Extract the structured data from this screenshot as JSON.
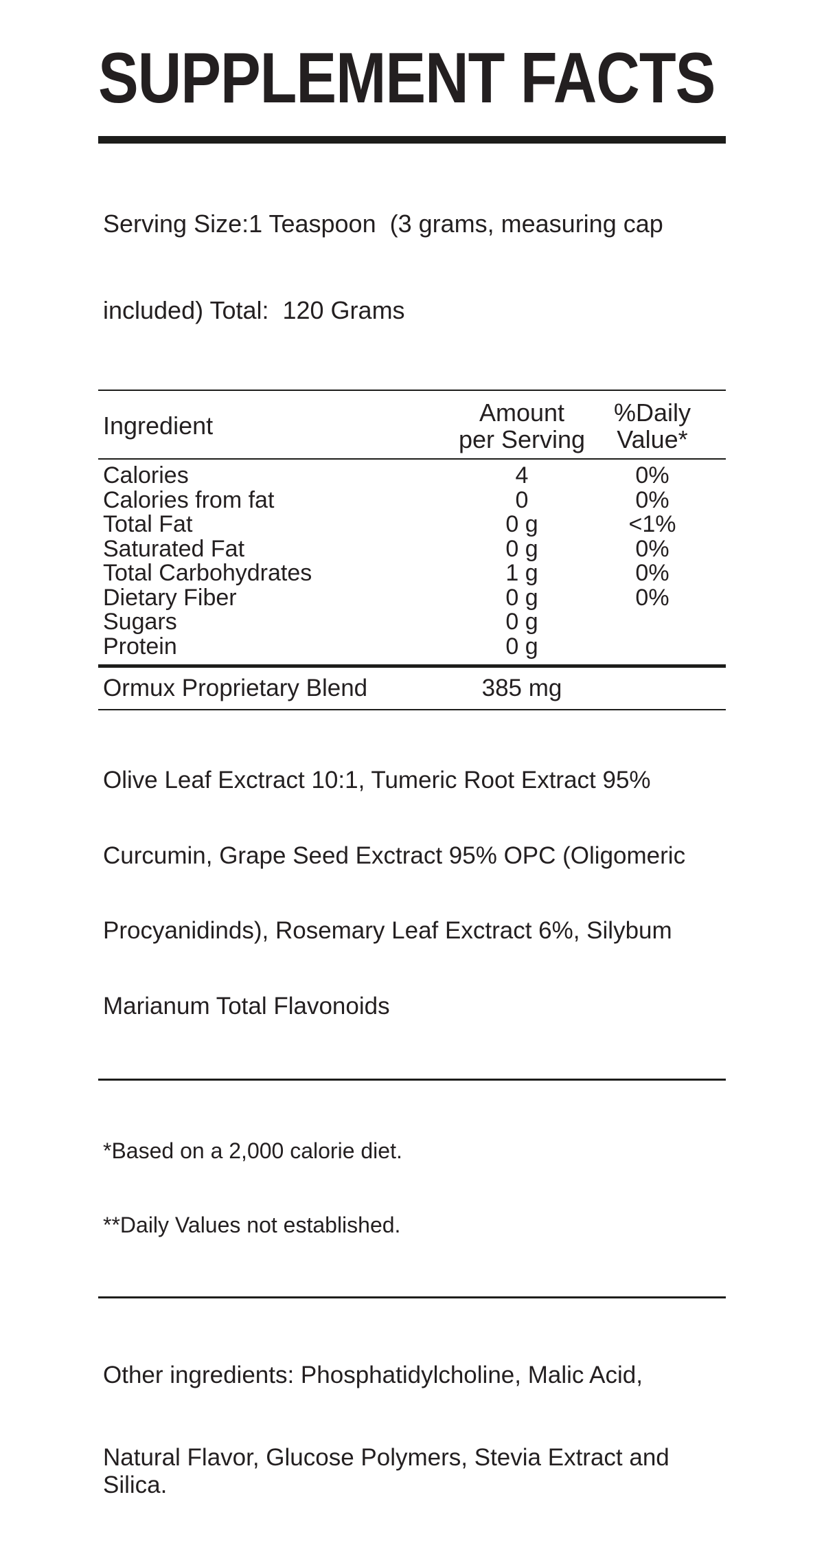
{
  "title": "SUPPLEMENT FACTS",
  "serving": {
    "lines": [
      "Serving Size:1 Teaspoon  (3 grams, measuring cap",
      "included) Total:  120 Grams"
    ]
  },
  "table": {
    "header": {
      "ingredient": "Ingredient",
      "amount_line1": "Amount",
      "amount_line2": "per Serving",
      "dv_line1": "%Daily",
      "dv_line2": "Value*"
    },
    "rows": [
      {
        "name": "Calories",
        "amount": "4",
        "dv": "0%"
      },
      {
        "name": "Calories from fat",
        "amount": "0",
        "dv": "0%"
      },
      {
        "name": "Total Fat",
        "amount": "0 g",
        "dv": "<1%"
      },
      {
        "name": "Saturated Fat",
        "amount": "0 g",
        "dv": "0%"
      },
      {
        "name": "Total Carbohydrates",
        "amount": "1 g",
        "dv": "0%"
      },
      {
        "name": "Dietary Fiber",
        "amount": "0 g",
        "dv": "0%"
      },
      {
        "name": "Sugars",
        "amount": "0 g",
        "dv": ""
      },
      {
        "name": "Protein",
        "amount": "0 g",
        "dv": ""
      }
    ]
  },
  "blend": {
    "name": "Ormux Proprietary Blend",
    "amount": "385 mg",
    "description_lines": [
      "Olive Leaf Exctract 10:1, Tumeric Root Extract 95%",
      "Curcumin, Grape Seed Exctract 95% OPC (Oligomeric",
      "Procyanidinds), Rosemary Leaf Exctract 6%, Silybum",
      "Marianum Total Flavonoids"
    ]
  },
  "footnotes": {
    "lines": [
      "*Based on a 2,000 calorie diet.",
      "**Daily Values not established."
    ]
  },
  "other_ingredients": {
    "lines": [
      "Other ingredients: Phosphatidylcholine, Malic Acid,",
      "Natural Flavor, Glucose Polymers, Stevia Extract and Silica."
    ]
  },
  "colors": {
    "text": "#231f20",
    "rule": "#1d1d1b",
    "background": "#ffffff"
  }
}
